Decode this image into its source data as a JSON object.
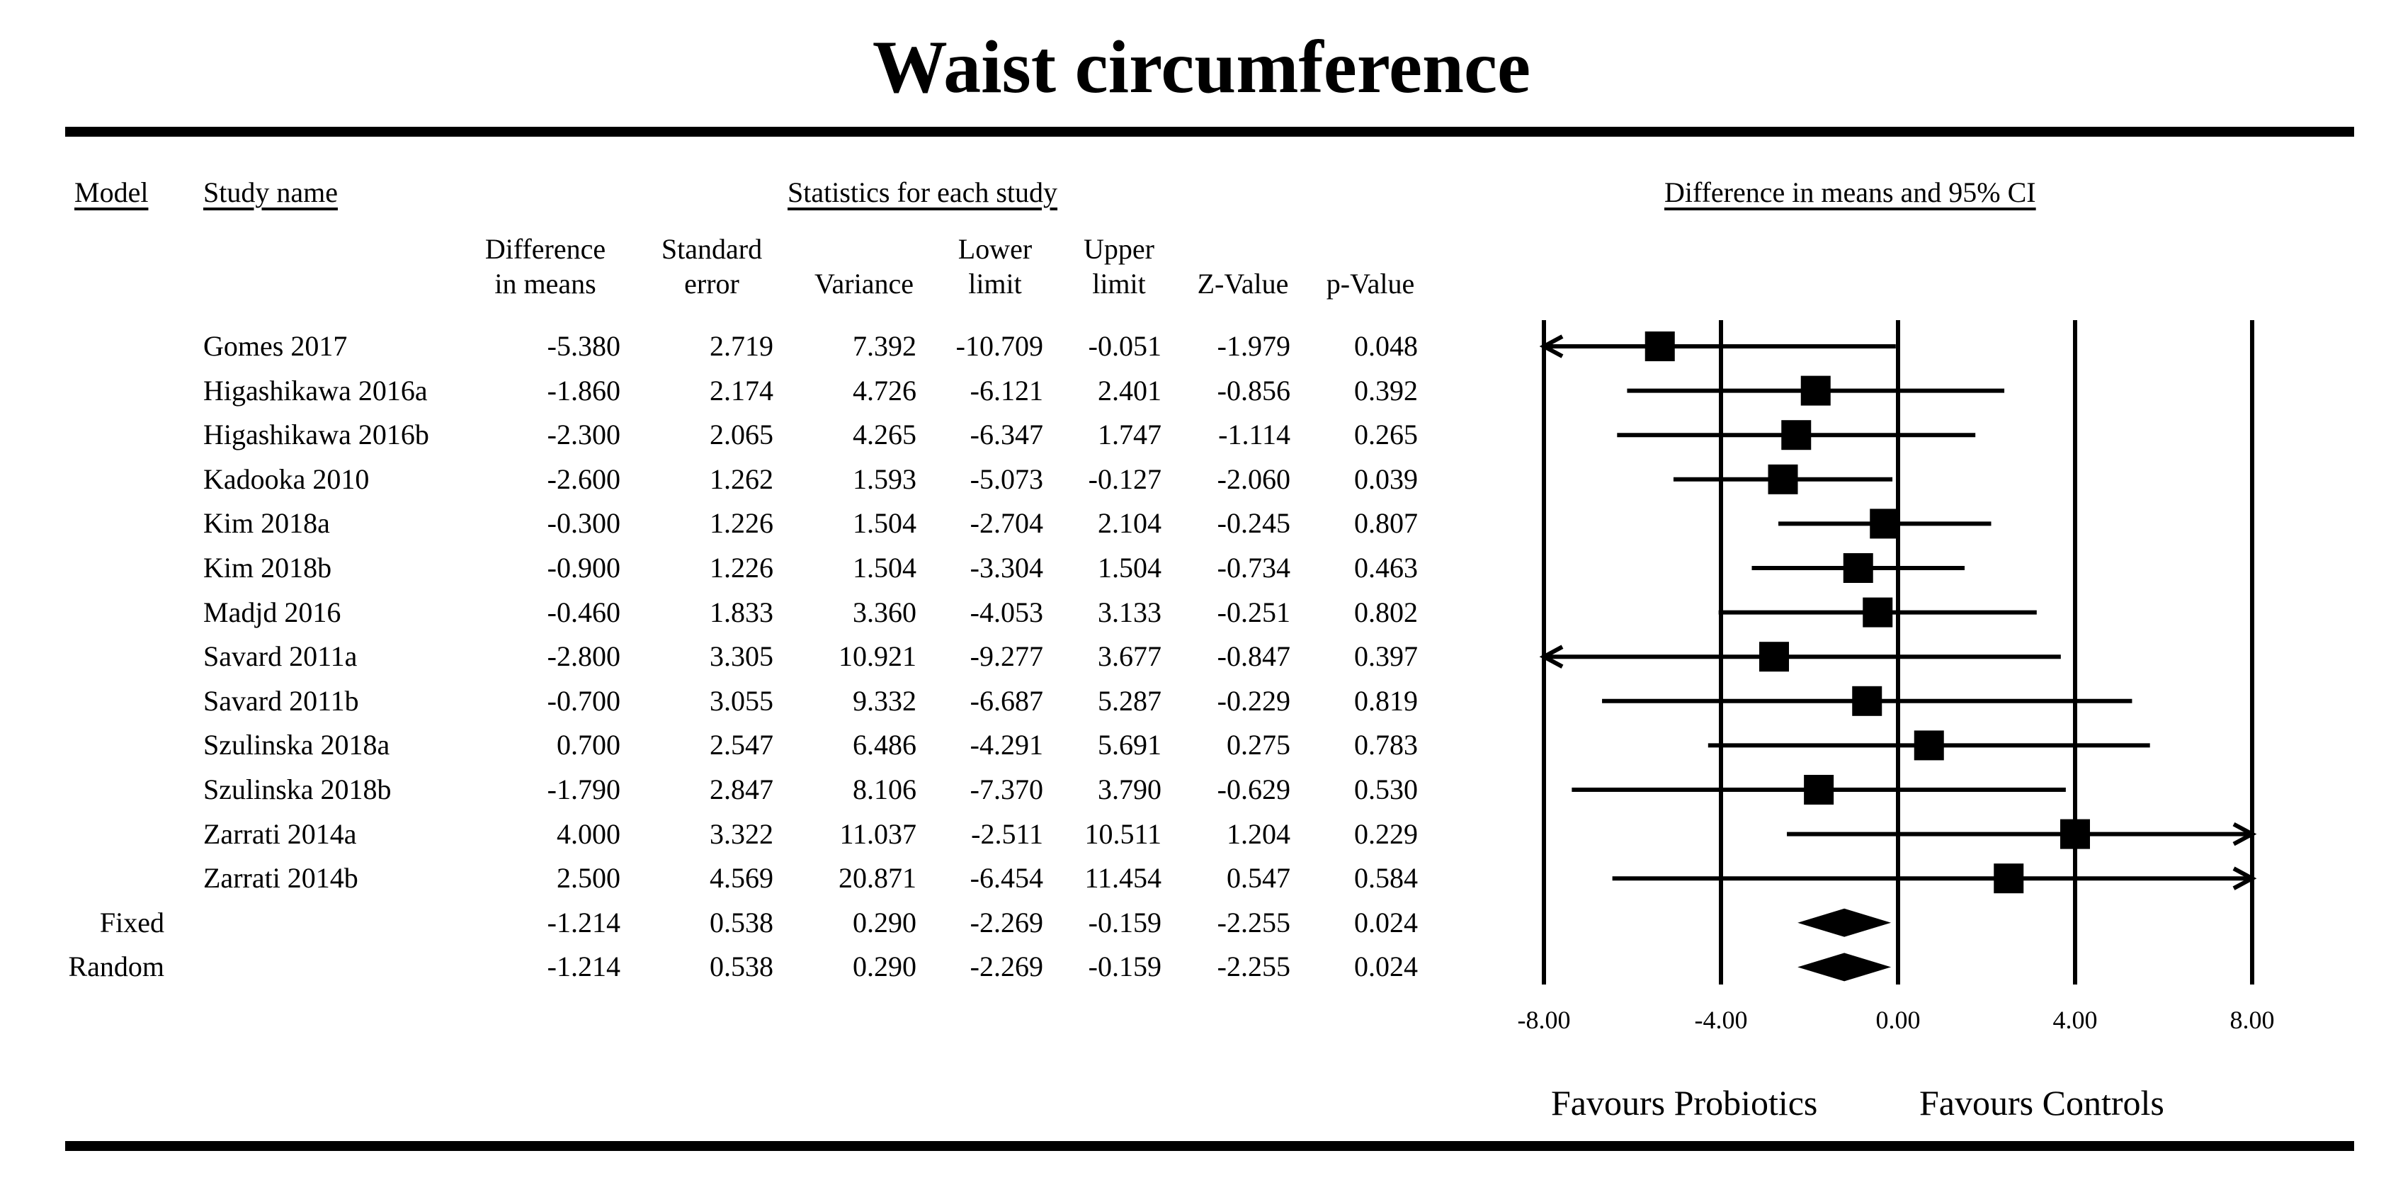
{
  "chart_data": {
    "type": "forest",
    "title": "Waist circumference",
    "headers": {
      "model": "Model",
      "study_name": "Study name",
      "stats_group": "Statistics for each study",
      "plot_header": "Difference in means and 95% CI",
      "diff": [
        "Difference",
        "in means"
      ],
      "se": [
        "Standard",
        "error"
      ],
      "variance": [
        "Variance"
      ],
      "lower": [
        "Lower",
        "limit"
      ],
      "upper": [
        "Upper",
        "limit"
      ],
      "z": [
        "Z-Value"
      ],
      "p": [
        "p-Value"
      ]
    },
    "studies": [
      {
        "name": "Gomes 2017",
        "diff": "-5.380",
        "se": "2.719",
        "var": "7.392",
        "lower": "-10.709",
        "upper": "-0.051",
        "z": "-1.979",
        "p": "0.048"
      },
      {
        "name": "Higashikawa 2016a",
        "diff": "-1.860",
        "se": "2.174",
        "var": "4.726",
        "lower": "-6.121",
        "upper": "2.401",
        "z": "-0.856",
        "p": "0.392"
      },
      {
        "name": "Higashikawa 2016b",
        "diff": "-2.300",
        "se": "2.065",
        "var": "4.265",
        "lower": "-6.347",
        "upper": "1.747",
        "z": "-1.114",
        "p": "0.265"
      },
      {
        "name": "Kadooka 2010",
        "diff": "-2.600",
        "se": "1.262",
        "var": "1.593",
        "lower": "-5.073",
        "upper": "-0.127",
        "z": "-2.060",
        "p": "0.039"
      },
      {
        "name": "Kim 2018a",
        "diff": "-0.300",
        "se": "1.226",
        "var": "1.504",
        "lower": "-2.704",
        "upper": "2.104",
        "z": "-0.245",
        "p": "0.807"
      },
      {
        "name": "Kim 2018b",
        "diff": "-0.900",
        "se": "1.226",
        "var": "1.504",
        "lower": "-3.304",
        "upper": "1.504",
        "z": "-0.734",
        "p": "0.463"
      },
      {
        "name": "Madjd 2016",
        "diff": "-0.460",
        "se": "1.833",
        "var": "3.360",
        "lower": "-4.053",
        "upper": "3.133",
        "z": "-0.251",
        "p": "0.802"
      },
      {
        "name": "Savard 2011a",
        "diff": "-2.800",
        "se": "3.305",
        "var": "10.921",
        "lower": "-9.277",
        "upper": "3.677",
        "z": "-0.847",
        "p": "0.397"
      },
      {
        "name": "Savard 2011b",
        "diff": "-0.700",
        "se": "3.055",
        "var": "9.332",
        "lower": "-6.687",
        "upper": "5.287",
        "z": "-0.229",
        "p": "0.819"
      },
      {
        "name": "Szulinska 2018a",
        "diff": "0.700",
        "se": "2.547",
        "var": "6.486",
        "lower": "-4.291",
        "upper": "5.691",
        "z": "0.275",
        "p": "0.783"
      },
      {
        "name": "Szulinska 2018b",
        "diff": "-1.790",
        "se": "2.847",
        "var": "8.106",
        "lower": "-7.370",
        "upper": "3.790",
        "z": "-0.629",
        "p": "0.530"
      },
      {
        "name": "Zarrati 2014a",
        "diff": "4.000",
        "se": "3.322",
        "var": "11.037",
        "lower": "-2.511",
        "upper": "10.511",
        "z": "1.204",
        "p": "0.229"
      },
      {
        "name": "Zarrati 2014b",
        "diff": "2.500",
        "se": "4.569",
        "var": "20.871",
        "lower": "-6.454",
        "upper": "11.454",
        "z": "0.547",
        "p": "0.584"
      }
    ],
    "summary": [
      {
        "model": "Fixed",
        "diff": "-1.214",
        "se": "0.538",
        "var": "0.290",
        "lower": "-2.269",
        "upper": "-0.159",
        "z": "-2.255",
        "p": "0.024"
      },
      {
        "model": "Random",
        "diff": "-1.214",
        "se": "0.538",
        "var": "0.290",
        "lower": "-2.269",
        "upper": "-0.159",
        "z": "-2.255",
        "p": "0.024"
      }
    ],
    "xlim": [
      -8,
      8
    ],
    "xticks": [
      -8,
      -4,
      0,
      4,
      8
    ],
    "xtick_labels": [
      "-8.00",
      "-4.00",
      "0.00",
      "4.00",
      "8.00"
    ],
    "favours_left": "Favours Probiotics",
    "favours_right": "Favours Controls"
  }
}
